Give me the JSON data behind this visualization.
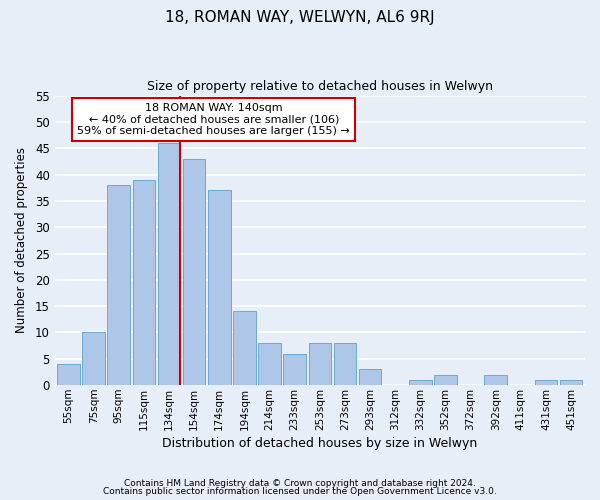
{
  "title": "18, ROMAN WAY, WELWYN, AL6 9RJ",
  "subtitle": "Size of property relative to detached houses in Welwyn",
  "xlabel": "Distribution of detached houses by size in Welwyn",
  "ylabel": "Number of detached properties",
  "categories": [
    "55sqm",
    "75sqm",
    "95sqm",
    "115sqm",
    "134sqm",
    "154sqm",
    "174sqm",
    "194sqm",
    "214sqm",
    "233sqm",
    "253sqm",
    "273sqm",
    "293sqm",
    "312sqm",
    "332sqm",
    "352sqm",
    "372sqm",
    "392sqm",
    "411sqm",
    "431sqm",
    "451sqm"
  ],
  "values": [
    4,
    10,
    38,
    39,
    46,
    43,
    37,
    14,
    8,
    6,
    8,
    8,
    3,
    0,
    1,
    2,
    0,
    2,
    0,
    1,
    1
  ],
  "bar_color": "#aec6e8",
  "bar_edge_color": "#6aaad4",
  "ylim": [
    0,
    55
  ],
  "yticks": [
    0,
    5,
    10,
    15,
    20,
    25,
    30,
    35,
    40,
    45,
    50,
    55
  ],
  "vline_color": "#cc0000",
  "annotation_title": "18 ROMAN WAY: 140sqm",
  "annotation_line1": "← 40% of detached houses are smaller (106)",
  "annotation_line2": "59% of semi-detached houses are larger (155) →",
  "annotation_box_color": "#ffffff",
  "annotation_box_edgecolor": "#cc0000",
  "footer1": "Contains HM Land Registry data © Crown copyright and database right 2024.",
  "footer2": "Contains public sector information licensed under the Open Government Licence v3.0.",
  "background_color": "#e8eef7",
  "grid_color": "#ffffff"
}
